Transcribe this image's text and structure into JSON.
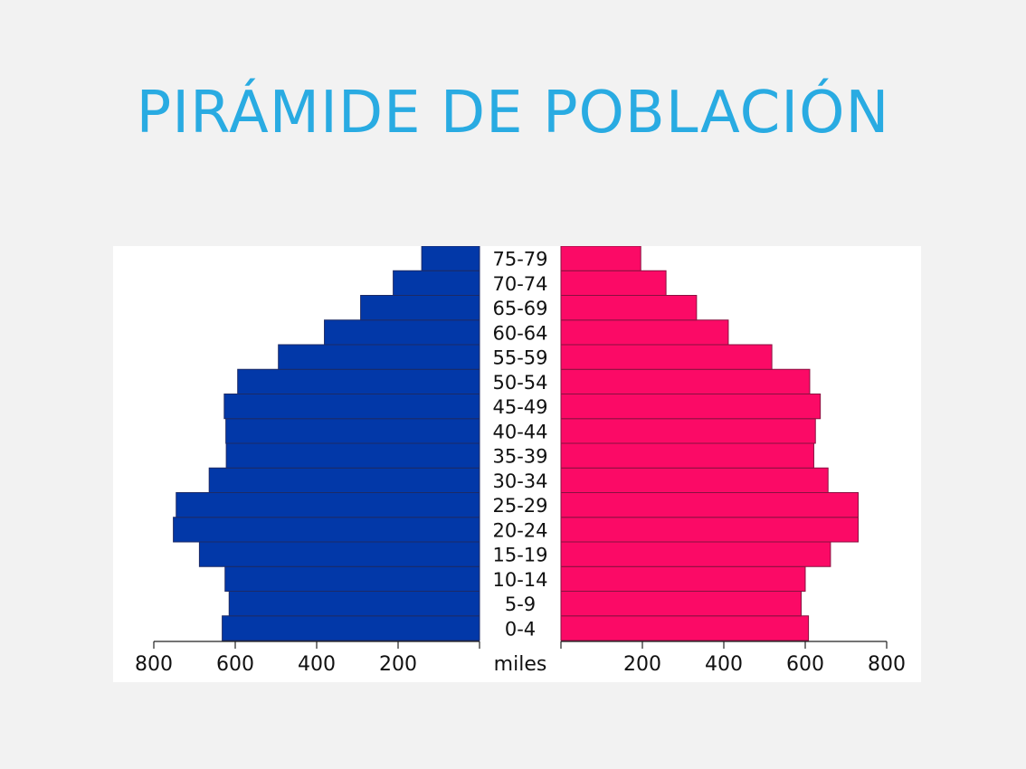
{
  "slide": {
    "title": "PIRÁMIDE DE POBLACIÓN"
  },
  "colors": {
    "background": "#f2f2f2",
    "title": "#29abe2",
    "male": "#0238a8",
    "female": "#fb0a66"
  },
  "chart_data": {
    "type": "bar",
    "subtype": "population-pyramid",
    "title": "",
    "unit_label": "miles",
    "categories": [
      "0-4",
      "5-9",
      "10-14",
      "15-19",
      "20-24",
      "25-29",
      "30-34",
      "35-39",
      "40-44",
      "45-49",
      "50-54",
      "55-59",
      "60-64",
      "65-69",
      "70-74",
      "75-79"
    ],
    "series": [
      {
        "side": "left",
        "color": "#0238a8",
        "values": [
          632,
          615,
          625,
          688,
          752,
          745,
          664,
          622,
          623,
          627,
          594,
          494,
          381,
          292,
          212,
          142
        ]
      },
      {
        "side": "right",
        "color": "#fb0a66",
        "values": [
          608,
          590,
          600,
          662,
          730,
          730,
          656,
          621,
          625,
          637,
          611,
          518,
          411,
          333,
          258,
          196
        ]
      }
    ],
    "x_ticks": [
      800,
      600,
      400,
      200
    ],
    "xlim": [
      0,
      800
    ],
    "grid": false,
    "legend": "none"
  }
}
